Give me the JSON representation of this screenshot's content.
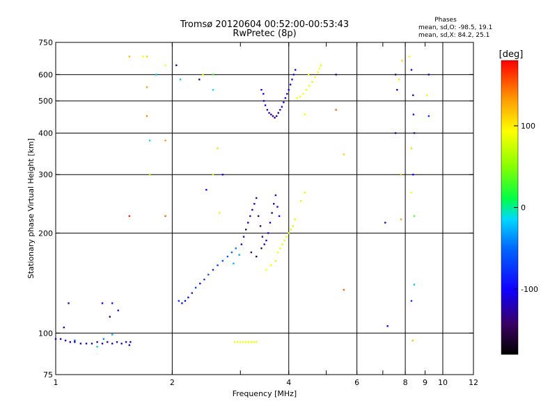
{
  "chart_data": {
    "type": "scatter",
    "title": "Tromsø 20120604 00:52:00-00:53:43",
    "subtitle": "RwPretec (8p)",
    "xlabel": "Frequency [MHz]",
    "ylabel": "Stationary phase Virtual Height [km]",
    "x_scale": "log",
    "y_scale": "log",
    "xlim": [
      1,
      12
    ],
    "ylim": [
      75,
      750
    ],
    "x_ticks": [
      1,
      2,
      4,
      6,
      8,
      10,
      12
    ],
    "x_minor_ticks": [
      3,
      5,
      7,
      9
    ],
    "x_gridlines": [
      2,
      4,
      6,
      8,
      10
    ],
    "y_ticks": [
      75,
      100,
      200,
      300,
      400,
      500,
      600,
      750
    ],
    "y_gridlines": [
      100,
      200,
      300,
      400,
      500,
      600
    ],
    "x_major_labels": [
      "1",
      "2",
      "4",
      "6",
      "8"
    ],
    "x_minor_labels": [
      "9",
      "10",
      "12"
    ],
    "y_labels": [
      "750",
      "600",
      "500",
      "400",
      "300",
      "200",
      "100",
      "75"
    ],
    "grid": true,
    "stats": {
      "heading": "Phases",
      "line1": "mean, sd,O: -98.5, 19.1",
      "line2": "mean, sd,X: 84.2, 25.1"
    },
    "colorbar": {
      "label": "[deg]",
      "range": [
        -180,
        180
      ],
      "ticks": [
        "100",
        "0",
        "-100"
      ],
      "tick_values": [
        100,
        0,
        -100
      ]
    },
    "series": [
      {
        "colormode": "phase",
        "points": [
          [
            1.0,
            96,
            -120
          ],
          [
            1.03,
            96,
            -120
          ],
          [
            1.06,
            95,
            -118
          ],
          [
            1.09,
            94,
            -115
          ],
          [
            1.12,
            94,
            -120
          ],
          [
            1.16,
            93,
            -122
          ],
          [
            1.2,
            93,
            -118
          ],
          [
            1.24,
            93,
            -120
          ],
          [
            1.28,
            94,
            -125
          ],
          [
            1.32,
            93,
            -118
          ],
          [
            1.36,
            94,
            -120
          ],
          [
            1.4,
            93,
            -122
          ],
          [
            1.44,
            94,
            -115
          ],
          [
            1.48,
            93,
            -120
          ],
          [
            1.52,
            94,
            -118
          ],
          [
            1.56,
            94,
            -121
          ],
          [
            1.05,
            104,
            -110
          ],
          [
            1.08,
            123,
            -115
          ],
          [
            1.32,
            123,
            -100
          ],
          [
            1.38,
            112,
            -140
          ],
          [
            1.4,
            123,
            -90
          ],
          [
            1.45,
            117,
            -95
          ],
          [
            1.55,
            92,
            -100
          ],
          [
            1.12,
            95,
            -60
          ],
          [
            1.33,
            96,
            -40
          ],
          [
            1.4,
            99,
            -30
          ],
          [
            1.28,
            91,
            -20
          ],
          [
            2.08,
            125,
            -80
          ],
          [
            2.12,
            123,
            -90
          ],
          [
            2.16,
            125,
            -100
          ],
          [
            2.2,
            128,
            -95
          ],
          [
            2.25,
            132,
            -85
          ],
          [
            2.3,
            137,
            -70
          ],
          [
            2.36,
            141,
            -90
          ],
          [
            2.42,
            145,
            -75
          ],
          [
            2.48,
            150,
            -60
          ],
          [
            2.55,
            155,
            -80
          ],
          [
            2.62,
            160,
            -70
          ],
          [
            2.7,
            165,
            -60
          ],
          [
            2.78,
            170,
            -55
          ],
          [
            2.85,
            175,
            -50
          ],
          [
            2.92,
            180,
            -45
          ],
          [
            2.98,
            172,
            -30
          ],
          [
            2.88,
            162,
            -25
          ],
          [
            3.02,
            185,
            -130
          ],
          [
            3.06,
            195,
            -120
          ],
          [
            3.1,
            205,
            -140
          ],
          [
            3.14,
            215,
            -110
          ],
          [
            3.18,
            225,
            -130
          ],
          [
            3.22,
            235,
            -120
          ],
          [
            3.26,
            245,
            -115
          ],
          [
            3.3,
            255,
            -125
          ],
          [
            3.34,
            225,
            -140
          ],
          [
            3.38,
            210,
            -150
          ],
          [
            3.42,
            195,
            -130
          ],
          [
            3.46,
            185,
            -120
          ],
          [
            3.5,
            190,
            -110
          ],
          [
            3.54,
            200,
            -105
          ],
          [
            3.58,
            215,
            -115
          ],
          [
            3.62,
            230,
            -120
          ],
          [
            3.66,
            245,
            -125
          ],
          [
            3.7,
            260,
            -110
          ],
          [
            3.74,
            240,
            -115
          ],
          [
            3.78,
            225,
            -105
          ],
          [
            3.2,
            175,
            -145
          ],
          [
            3.3,
            170,
            -150
          ],
          [
            3.4,
            180,
            -135
          ],
          [
            3.75,
            175,
            90
          ],
          [
            3.8,
            180,
            95
          ],
          [
            3.85,
            185,
            85
          ],
          [
            3.9,
            190,
            80
          ],
          [
            3.95,
            195,
            90
          ],
          [
            4.0,
            200,
            85
          ],
          [
            4.05,
            205,
            80
          ],
          [
            4.1,
            210,
            75
          ],
          [
            4.15,
            220,
            80
          ],
          [
            3.6,
            160,
            95
          ],
          [
            3.7,
            165,
            100
          ],
          [
            3.5,
            155,
            90
          ],
          [
            4.3,
            250,
            80
          ],
          [
            4.4,
            265,
            85
          ],
          [
            3.45,
            500,
            -120
          ],
          [
            3.48,
            485,
            -115
          ],
          [
            3.52,
            470,
            -125
          ],
          [
            3.56,
            460,
            -120
          ],
          [
            3.6,
            455,
            -130
          ],
          [
            3.64,
            450,
            -140
          ],
          [
            3.68,
            445,
            -135
          ],
          [
            3.72,
            450,
            -130
          ],
          [
            3.76,
            460,
            -125
          ],
          [
            3.8,
            470,
            -120
          ],
          [
            3.84,
            480,
            -115
          ],
          [
            3.88,
            495,
            -110
          ],
          [
            3.92,
            510,
            -115
          ],
          [
            3.96,
            525,
            -120
          ],
          [
            4.0,
            540,
            -110
          ],
          [
            4.04,
            560,
            -105
          ],
          [
            4.08,
            580,
            -100
          ],
          [
            4.12,
            600,
            -95
          ],
          [
            4.16,
            620,
            -100
          ],
          [
            3.4,
            540,
            -115
          ],
          [
            3.44,
            525,
            -110
          ],
          [
            4.2,
            510,
            85
          ],
          [
            4.28,
            515,
            90
          ],
          [
            4.36,
            525,
            95
          ],
          [
            4.44,
            540,
            85
          ],
          [
            4.52,
            555,
            90
          ],
          [
            4.6,
            570,
            80
          ],
          [
            4.68,
            590,
            85
          ],
          [
            4.76,
            610,
            90
          ],
          [
            4.8,
            625,
            95
          ],
          [
            4.84,
            640,
            85
          ],
          [
            4.5,
            600,
            90
          ],
          [
            4.4,
            455,
            95
          ],
          [
            2.9,
            94,
            85
          ],
          [
            2.95,
            94,
            90
          ],
          [
            3.0,
            94,
            88
          ],
          [
            3.05,
            94,
            92
          ],
          [
            3.1,
            94,
            86
          ],
          [
            3.15,
            94,
            90
          ],
          [
            3.2,
            94,
            88
          ],
          [
            3.25,
            94,
            85
          ],
          [
            3.3,
            94,
            90
          ],
          [
            1.55,
            680,
            120
          ],
          [
            1.68,
            680,
            90
          ],
          [
            1.72,
            680,
            110
          ],
          [
            1.82,
            600,
            -20
          ],
          [
            1.72,
            550,
            130
          ],
          [
            1.72,
            450,
            140
          ],
          [
            1.75,
            380,
            -10
          ],
          [
            1.75,
            300,
            60
          ],
          [
            1.55,
            225,
            170
          ],
          [
            1.92,
            640,
            90
          ],
          [
            1.92,
            380,
            130
          ],
          [
            1.92,
            225,
            150
          ],
          [
            2.05,
            640,
            -130
          ],
          [
            2.1,
            580,
            -20
          ],
          [
            2.35,
            580,
            -130
          ],
          [
            2.4,
            600,
            100
          ],
          [
            2.55,
            600,
            30
          ],
          [
            2.55,
            540,
            -10
          ],
          [
            2.62,
            360,
            110
          ],
          [
            2.55,
            300,
            80
          ],
          [
            2.45,
            270,
            -100
          ],
          [
            2.65,
            230,
            100
          ],
          [
            2.7,
            300,
            -100
          ],
          [
            7.55,
            600,
            -130
          ],
          [
            7.7,
            580,
            100
          ],
          [
            7.62,
            540,
            -100
          ],
          [
            7.55,
            400,
            -120
          ],
          [
            8.3,
            620,
            -110
          ],
          [
            8.38,
            520,
            -130
          ],
          [
            8.4,
            455,
            -90
          ],
          [
            8.44,
            400,
            -120
          ],
          [
            8.3,
            360,
            110
          ],
          [
            8.38,
            300,
            -100
          ],
          [
            8.44,
            225,
            30
          ],
          [
            8.3,
            125,
            -80
          ],
          [
            8.36,
            95,
            120
          ],
          [
            8.44,
            140,
            -20
          ],
          [
            9.2,
            600,
            -120
          ],
          [
            9.2,
            450,
            -80
          ],
          [
            9.1,
            520,
            100
          ],
          [
            7.1,
            215,
            -120
          ],
          [
            7.2,
            105,
            -100
          ],
          [
            5.55,
            345,
            110
          ],
          [
            5.55,
            135,
            150
          ],
          [
            5.3,
            600,
            -120
          ],
          [
            5.3,
            470,
            150
          ],
          [
            7.85,
            660,
            110
          ],
          [
            8.2,
            680,
            90
          ],
          [
            7.8,
            220,
            130
          ],
          [
            7.8,
            300,
            120
          ],
          [
            8.3,
            265,
            90
          ]
        ]
      }
    ]
  }
}
